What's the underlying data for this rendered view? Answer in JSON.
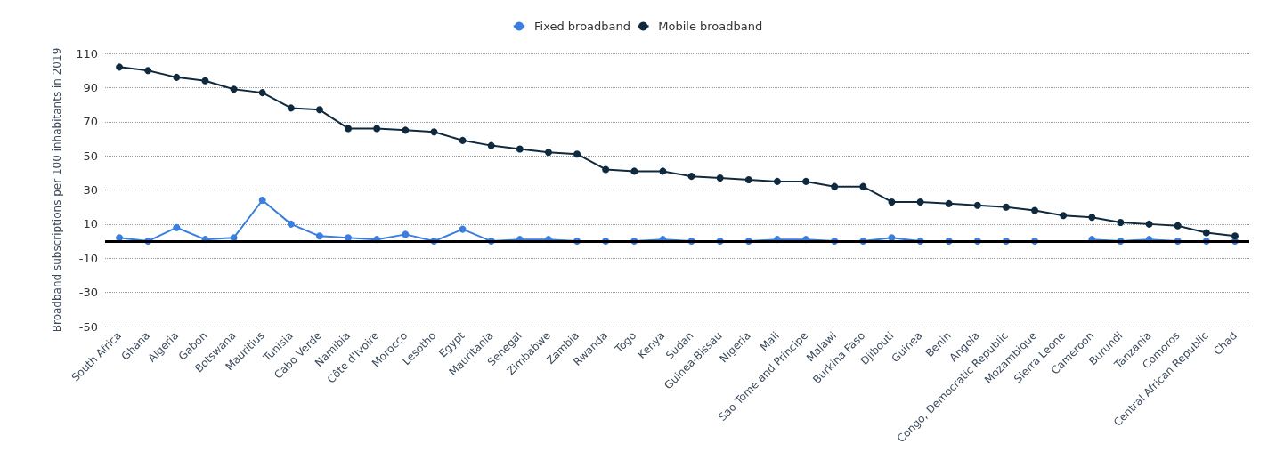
{
  "chart_data": {
    "type": "line",
    "ylabel": "Broadband subscriptions per 100 inhabitants in 2019",
    "categories": [
      "South Africa",
      "Ghana",
      "Algeria",
      "Gabon",
      "Botswana",
      "Mauritius",
      "Tunisia",
      "Cabo Verde",
      "Namibia",
      "Côte d'Ivoire",
      "Morocco",
      "Lesotho",
      "Egypt",
      "Mauritania",
      "Senegal",
      "Zimbabwe",
      "Zambia",
      "Rwanda",
      "Togo",
      "Kenya",
      "Sudan",
      "Guinea-Bissau",
      "Nigeria",
      "Mali",
      "Sao Tome and Principe",
      "Malawi",
      "Burkina Faso",
      "Djibouti",
      "Guinea",
      "Benin",
      "Angola",
      "Congo, Democratic Republic",
      "Mozambique",
      "Sierra Leone",
      "Cameroon",
      "Burundi",
      "Tanzania",
      "Comoros",
      "Central African Republic",
      "Chad"
    ],
    "series": [
      {
        "name": "Fixed broadband",
        "color": "#3a7fe0",
        "values": [
          2,
          0,
          8,
          1,
          2,
          24,
          10,
          3,
          2,
          1,
          4,
          0,
          7,
          0,
          1,
          1,
          0,
          0,
          0,
          1,
          0,
          0,
          0,
          1,
          1,
          0,
          0,
          2,
          0,
          0,
          0,
          0,
          0,
          null,
          1,
          0,
          1,
          0,
          0,
          0
        ]
      },
      {
        "name": "Mobile broadband",
        "color": "#0f2a3f",
        "values": [
          102,
          100,
          96,
          94,
          89,
          87,
          78,
          77,
          66,
          66,
          65,
          64,
          59,
          56,
          54,
          52,
          51,
          42,
          41,
          41,
          38,
          37,
          36,
          35,
          35,
          32,
          32,
          23,
          23,
          22,
          21,
          20,
          18,
          15,
          14,
          11,
          10,
          9,
          5,
          3
        ]
      }
    ],
    "ylim": [
      -50,
      110
    ],
    "yticks": [
      -50,
      -30,
      -10,
      10,
      30,
      50,
      70,
      90,
      110
    ],
    "ref_lines": [
      {
        "axis": "y",
        "value": 0,
        "color": "#000000"
      }
    ],
    "grid": "y",
    "legend": "top",
    "marker": "circle",
    "line_style": "solid"
  }
}
